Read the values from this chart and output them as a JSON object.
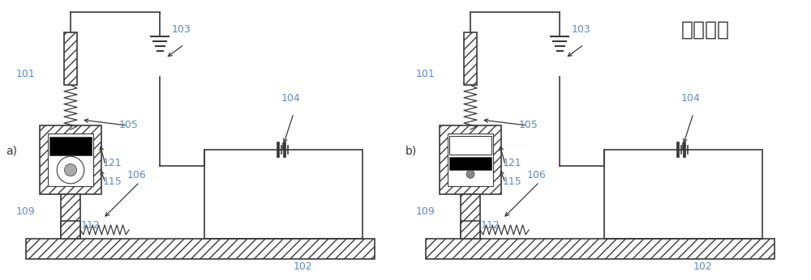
{
  "bg_color": "#ffffff",
  "lc": "#3a3a3a",
  "hc": "#3a3a3a",
  "fc": "#5b8bc4",
  "title": "现有技术",
  "fig_w": 10.0,
  "fig_h": 3.46,
  "label_fs": 9,
  "title_fs": 18,
  "note_a": "a)",
  "note_b": "b)"
}
